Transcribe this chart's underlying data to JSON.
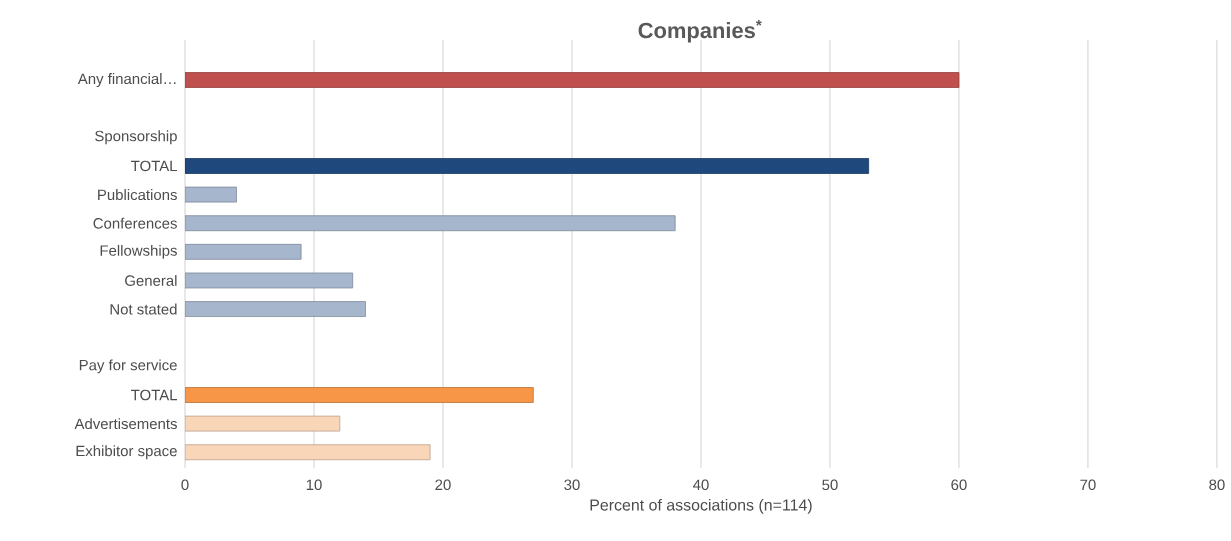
{
  "chart_data": {
    "type": "bar",
    "orientation": "horizontal",
    "title": "Companies$^{*}$",
    "xlabel": "Percent of associations (n=114)",
    "categories": [
      "Any financial…",
      null,
      "Sponsorship",
      "TOTAL",
      "Publications",
      "Conferences",
      "Fellowships",
      "General",
      "Not stated",
      null,
      "Pay for service",
      "TOTAL",
      "Advertisements",
      "Exhibitor space"
    ],
    "values": [
      60,
      null,
      null,
      53,
      4,
      38,
      9,
      13,
      14,
      null,
      null,
      27,
      12,
      19
    ],
    "colors": [
      "#c0504d",
      null,
      null,
      "#1f497d",
      "#a6b6cd",
      "#a6b6cd",
      "#a6b6cd",
      "#a6b6cd",
      "#a6b6cd",
      null,
      null,
      "#f79646",
      "#fad6b8",
      "#fad6b8"
    ],
    "xlim": [
      0,
      80
    ],
    "xticks": [
      0,
      10,
      20,
      30,
      40,
      50,
      60,
      70,
      80
    ],
    "grid": "x"
  }
}
